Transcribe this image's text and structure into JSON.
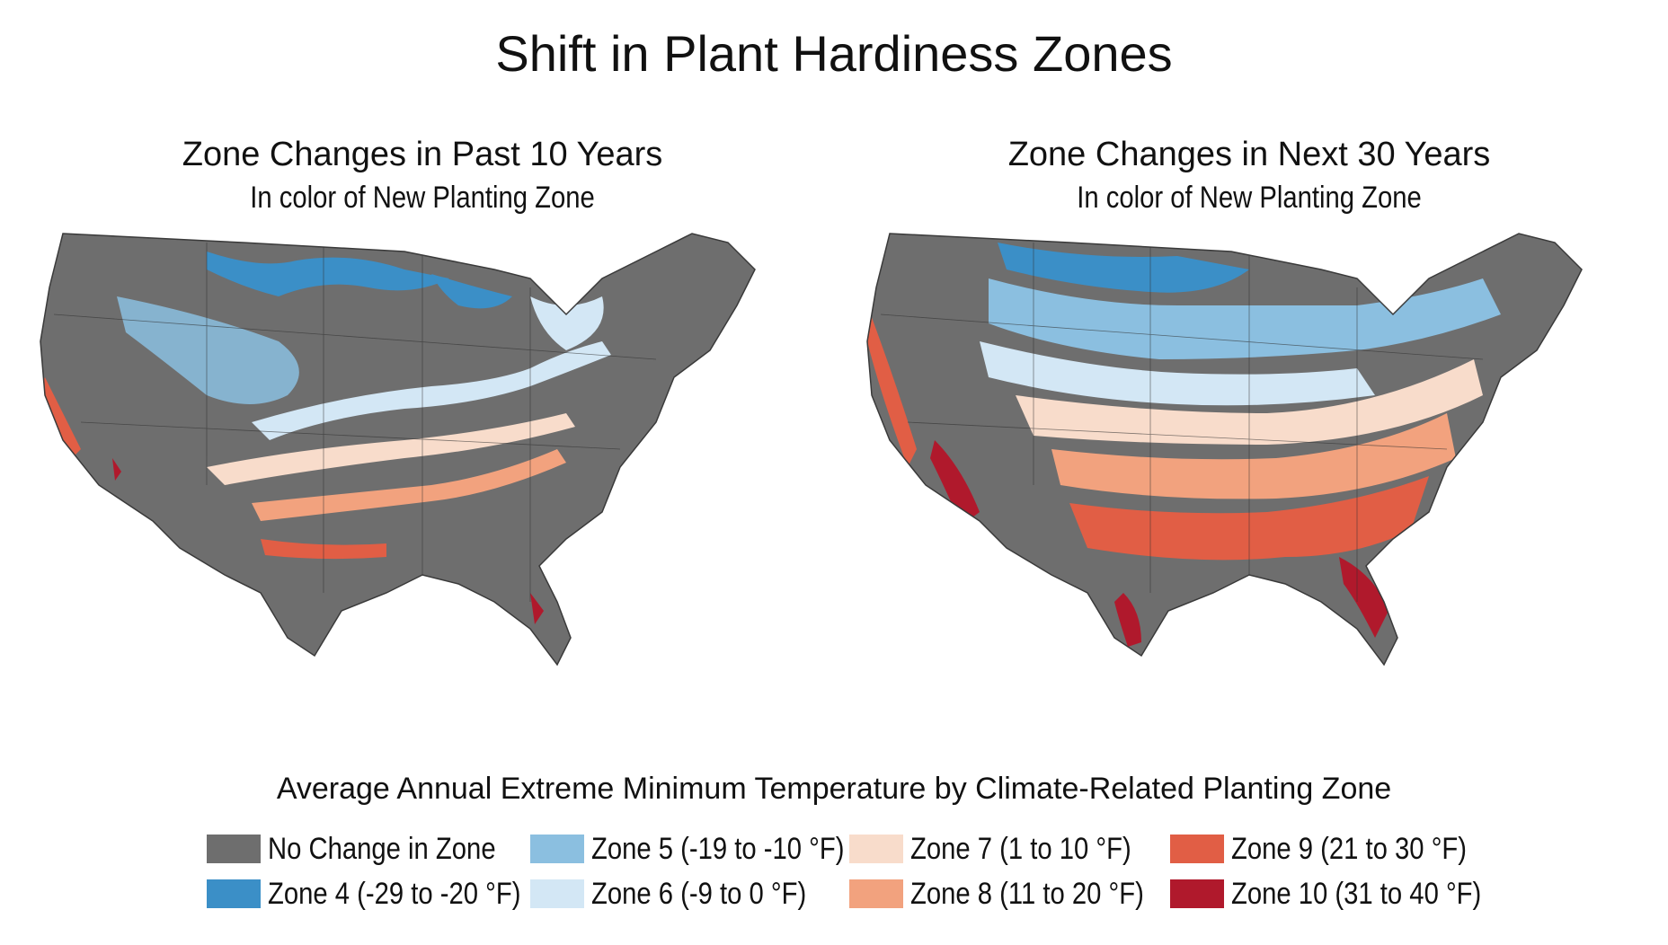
{
  "title": "Shift in Plant Hardiness Zones",
  "panels": [
    {
      "title": "Zone Changes in Past 10 Years",
      "subtitle": "In color of New Planting Zone"
    },
    {
      "title": "Zone Changes in Next 30 Years",
      "subtitle": "In color of New Planting Zone"
    }
  ],
  "legend": {
    "title": "Average Annual Extreme Minimum Temperature by Climate-Related Planting Zone",
    "items": [
      {
        "label": "No Change in Zone",
        "color": "#6e6e6e"
      },
      {
        "label": "Zone 4 (-29 to -20 °F)",
        "color": "#3b8fc7"
      },
      {
        "label": "Zone 5 (-19 to -10 °F)",
        "color": "#8bbfe0"
      },
      {
        "label": "Zone 6 (-9 to 0 °F)",
        "color": "#d3e7f5"
      },
      {
        "label": "Zone 7 (1 to 10 °F)",
        "color": "#f8dccb"
      },
      {
        "label": "Zone 8 (11 to 20 °F)",
        "color": "#f2a27e"
      },
      {
        "label": "Zone 9 (21 to 30 °F)",
        "color": "#e15e45"
      },
      {
        "label": "Zone 10 (31 to 40 °F)",
        "color": "#b0192c"
      }
    ]
  }
}
